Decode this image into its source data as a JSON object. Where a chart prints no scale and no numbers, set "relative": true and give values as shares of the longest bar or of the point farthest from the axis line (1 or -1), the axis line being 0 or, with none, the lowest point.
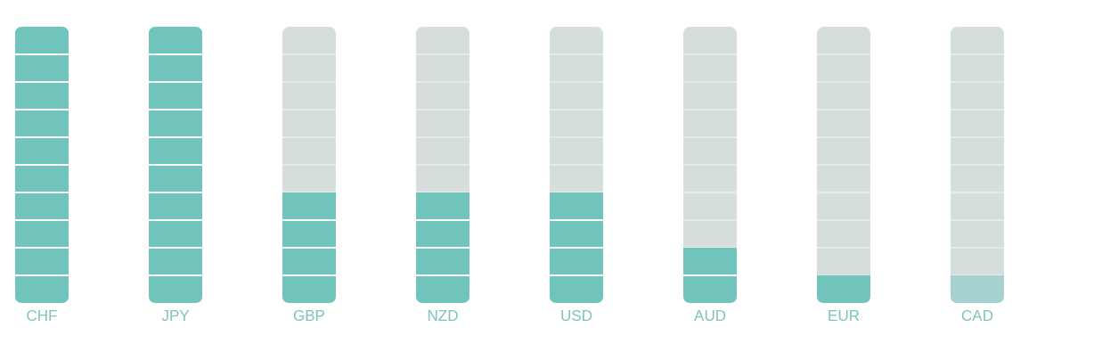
{
  "chart_data": {
    "type": "bar",
    "relative": true,
    "categories": [
      "CHF",
      "JPY",
      "GBP",
      "NZD",
      "USD",
      "AUD",
      "EUR",
      "CAD"
    ],
    "values": [
      1,
      1,
      0.4,
      0.4,
      0.4,
      0.2,
      0.1,
      0.1
    ],
    "colors": [
      "#70c4bb",
      "#70c4bb",
      "#70c4bb",
      "#70c4bb",
      "#70c4bb",
      "#70c4bb",
      "#70c4bb",
      "#a6d3cf"
    ],
    "grid": false,
    "legend": false
  }
}
